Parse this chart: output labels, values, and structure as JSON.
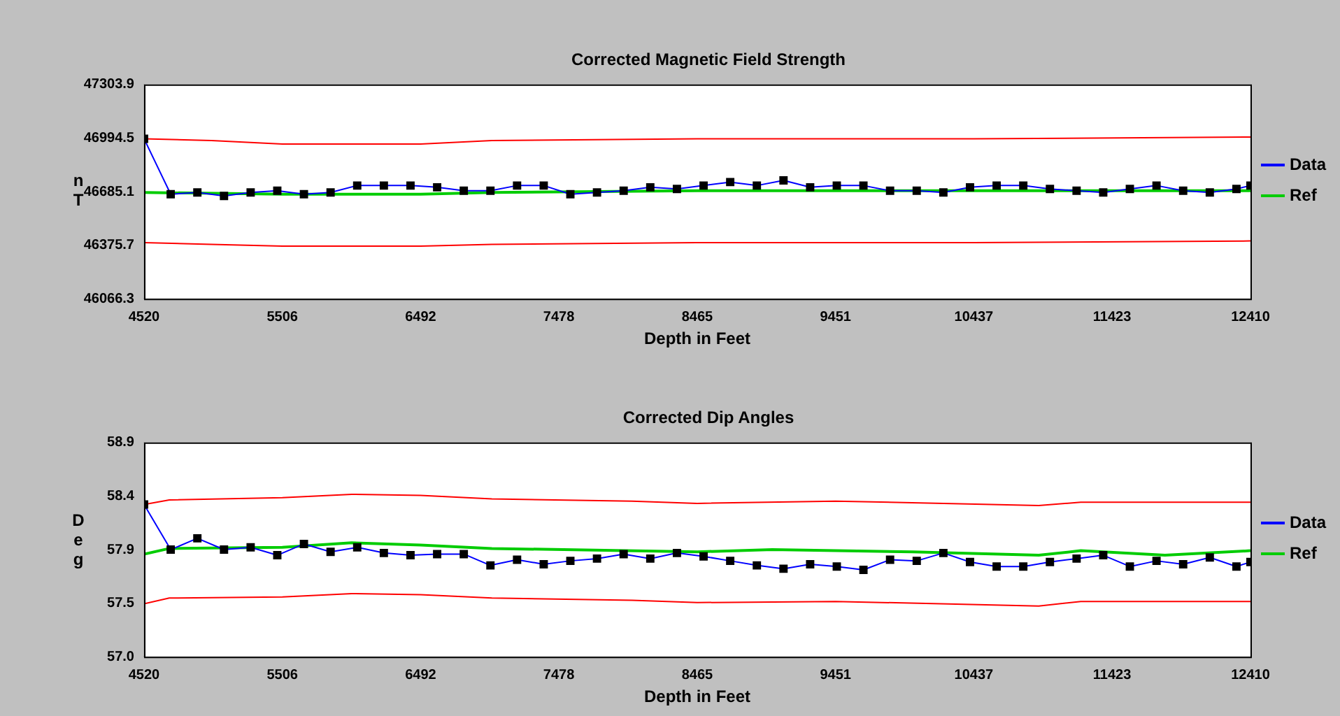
{
  "chart_data": [
    {
      "type": "line",
      "title": "Corrected Magnetic Field Strength",
      "xlabel": "Depth in Feet",
      "ylabel": "nT",
      "xlim": [
        4520,
        12410
      ],
      "xticks": [
        4520,
        5506,
        6492,
        7478,
        8465,
        9451,
        10437,
        11423,
        12410
      ],
      "ylim": [
        46066.3,
        47303.9
      ],
      "yticks": [
        46066.3,
        46375.7,
        46685.1,
        46994.5,
        47303.9
      ],
      "grid": false,
      "legend": "right",
      "series": [
        {
          "name": "Data",
          "color": "#0000ff",
          "marker": "square",
          "x": [
            4520,
            4710,
            4900,
            5090,
            5280,
            5470,
            5660,
            5850,
            6040,
            6230,
            6420,
            6610,
            6800,
            6990,
            7180,
            7370,
            7560,
            7750,
            7940,
            8130,
            8320,
            8510,
            8700,
            8890,
            9080,
            9270,
            9460,
            9650,
            9840,
            10030,
            10220,
            10410,
            10600,
            10790,
            10980,
            11170,
            11360,
            11550,
            11740,
            11930,
            12120,
            12310,
            12410
          ],
          "values": [
            46990,
            46670,
            46680,
            46660,
            46680,
            46690,
            46670,
            46680,
            46720,
            46720,
            46720,
            46710,
            46690,
            46690,
            46720,
            46720,
            46670,
            46680,
            46690,
            46710,
            46700,
            46720,
            46740,
            46720,
            46750,
            46710,
            46720,
            46720,
            46690,
            46690,
            46680,
            46710,
            46720,
            46720,
            46700,
            46690,
            46680,
            46700,
            46720,
            46690,
            46680,
            46700,
            46720
          ]
        },
        {
          "name": "Ref",
          "color": "#00cc00",
          "marker": "none",
          "x": [
            4520,
            5506,
            6492,
            7000,
            8465,
            10437,
            12410
          ],
          "values": [
            46680,
            46670,
            46670,
            46680,
            46690,
            46690,
            46690
          ]
        },
        {
          "color": "#ff0000",
          "marker": "none",
          "x": [
            4520,
            5000,
            5506,
            6492,
            7000,
            8465,
            10437,
            12410
          ],
          "values": [
            46990,
            46980,
            46960,
            46960,
            46980,
            46990,
            46990,
            47000
          ]
        },
        {
          "color": "#ff0000",
          "marker": "none",
          "x": [
            4520,
            5000,
            5506,
            6492,
            7000,
            8465,
            10437,
            12410
          ],
          "values": [
            46390,
            46380,
            46370,
            46370,
            46380,
            46390,
            46390,
            46400
          ]
        }
      ]
    },
    {
      "type": "line",
      "title": "Corrected Dip Angles",
      "xlabel": "Depth in Feet",
      "ylabel": "Deg",
      "xlim": [
        4520,
        12410
      ],
      "xticks": [
        4520,
        5506,
        6492,
        7478,
        8465,
        9451,
        10437,
        11423,
        12410
      ],
      "ylim": [
        57.0,
        58.9
      ],
      "yticks": [
        {
          "value": 57.0,
          "label": "57.0"
        },
        {
          "value": 57.475,
          "label": "57.5"
        },
        {
          "value": 57.95,
          "label": "57.9"
        },
        {
          "value": 58.425,
          "label": "58.4"
        },
        58.9
      ],
      "grid": false,
      "legend": "right",
      "series": [
        {
          "name": "Data",
          "color": "#0000ff",
          "marker": "square",
          "x": [
            4520,
            4710,
            4900,
            5090,
            5280,
            5470,
            5660,
            5850,
            6040,
            6230,
            6420,
            6610,
            6800,
            6990,
            7180,
            7370,
            7560,
            7750,
            7940,
            8130,
            8320,
            8510,
            8700,
            8890,
            9080,
            9270,
            9460,
            9650,
            9840,
            10030,
            10220,
            10410,
            10600,
            10790,
            10980,
            11170,
            11360,
            11550,
            11740,
            11930,
            12120,
            12310,
            12410
          ],
          "values": [
            58.35,
            57.95,
            58.05,
            57.95,
            57.97,
            57.9,
            58.0,
            57.93,
            57.97,
            57.92,
            57.9,
            57.91,
            57.91,
            57.81,
            57.86,
            57.82,
            57.85,
            57.87,
            57.91,
            57.87,
            57.92,
            57.89,
            57.85,
            57.81,
            57.78,
            57.82,
            57.8,
            57.77,
            57.86,
            57.85,
            57.92,
            57.84,
            57.8,
            57.8,
            57.84,
            57.87,
            57.9,
            57.8,
            57.85,
            57.82,
            57.88,
            57.8,
            57.84
          ]
        },
        {
          "name": "Ref",
          "color": "#00cc00",
          "marker": "none",
          "x": [
            4520,
            4700,
            5506,
            6000,
            6492,
            7000,
            8465,
            9000,
            10000,
            10900,
            11200,
            11800,
            12410
          ],
          "values": [
            57.91,
            57.96,
            57.97,
            58.01,
            57.99,
            57.96,
            57.93,
            57.95,
            57.93,
            57.9,
            57.94,
            57.9,
            57.94
          ]
        },
        {
          "color": "#ff0000",
          "marker": "none",
          "x": [
            4520,
            4700,
            5506,
            6000,
            6492,
            7000,
            8000,
            8465,
            9451,
            10900,
            11200,
            12410
          ],
          "values": [
            58.35,
            58.39,
            58.41,
            58.44,
            58.43,
            58.4,
            58.38,
            58.36,
            58.38,
            58.34,
            58.37,
            58.37
          ]
        },
        {
          "color": "#ff0000",
          "marker": "none",
          "x": [
            4520,
            4700,
            5506,
            6000,
            6492,
            7000,
            8000,
            8465,
            9451,
            10900,
            11200,
            12410
          ],
          "values": [
            57.47,
            57.52,
            57.53,
            57.56,
            57.55,
            57.52,
            57.5,
            57.48,
            57.49,
            57.45,
            57.49,
            57.49
          ]
        }
      ]
    }
  ]
}
